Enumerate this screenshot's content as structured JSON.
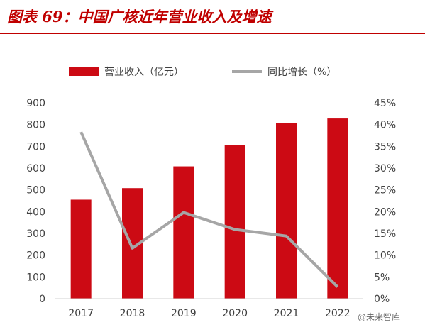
{
  "figure_title": "图表 69：中国广核近年营业收入及增速",
  "watermark": "@未来智库",
  "colors": {
    "bar": "#cc0a14",
    "line": "#a6a6a6",
    "title": "#c00000"
  },
  "chart_data": {
    "type": "bar",
    "categories": [
      "2017",
      "2018",
      "2019",
      "2020",
      "2021",
      "2022"
    ],
    "series": [
      {
        "name": "营业收入（亿元）",
        "type": "bar",
        "axis": "left",
        "values": [
          455,
          508,
          608,
          705,
          806,
          828
        ]
      },
      {
        "name": "同比增长（%）",
        "type": "line",
        "axis": "right",
        "values": [
          38.3,
          11.6,
          19.8,
          15.9,
          14.4,
          2.7
        ]
      }
    ],
    "y_left": {
      "range": [
        0,
        900
      ],
      "ticks": [
        "0",
        "100",
        "200",
        "300",
        "400",
        "500",
        "600",
        "700",
        "800",
        "900"
      ]
    },
    "y_right": {
      "range": [
        0,
        45
      ],
      "ticks": [
        "0%",
        "5%",
        "10%",
        "15%",
        "20%",
        "25%",
        "30%",
        "35%",
        "40%",
        "45%"
      ]
    },
    "grid": false,
    "legend": "top"
  }
}
